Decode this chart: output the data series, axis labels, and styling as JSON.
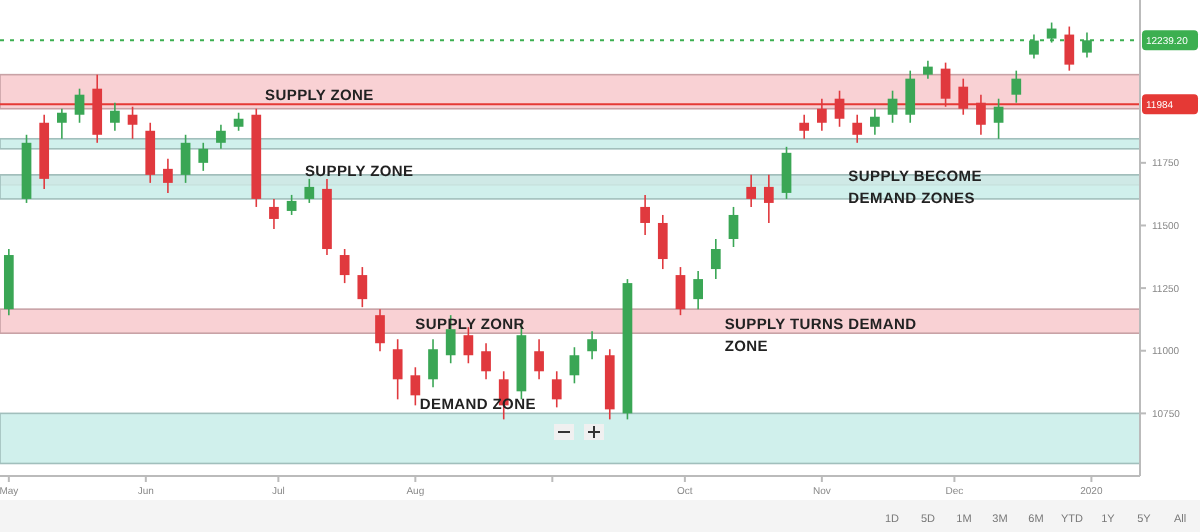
{
  "chart_data": {
    "type": "candlestick",
    "x": [
      "2019-05-01",
      "2019-05-05",
      "2019-05-09",
      "2019-05-13",
      "2019-05-17",
      "2019-05-21",
      "2019-05-25",
      "2019-05-29",
      "2019-06-02",
      "2019-06-06",
      "2019-06-10",
      "2019-06-14",
      "2019-06-18",
      "2019-06-22",
      "2019-06-26",
      "2019-06-30",
      "2019-07-04",
      "2019-07-08",
      "2019-07-12",
      "2019-07-16",
      "2019-07-20",
      "2019-07-24",
      "2019-07-28",
      "2019-08-01",
      "2019-08-05",
      "2019-08-09",
      "2019-08-13",
      "2019-08-17",
      "2019-08-21",
      "2019-08-25",
      "2019-08-29",
      "2019-09-02",
      "2019-09-06",
      "2019-09-10",
      "2019-09-14",
      "2019-09-18",
      "2019-09-22",
      "2019-09-26",
      "2019-09-30",
      "2019-10-04",
      "2019-10-08",
      "2019-10-12",
      "2019-10-16",
      "2019-10-20",
      "2019-10-24",
      "2019-10-28",
      "2019-11-01",
      "2019-11-05",
      "2019-11-09",
      "2019-11-13",
      "2019-11-17",
      "2019-11-21",
      "2019-11-25",
      "2019-11-29",
      "2019-12-03",
      "2019-12-07",
      "2019-12-11",
      "2019-12-15",
      "2019-12-19",
      "2019-12-23",
      "2019-12-27",
      "2019-12-31"
    ],
    "ohlc": [
      [
        11166,
        11406,
        11142,
        11382
      ],
      [
        11606,
        11862,
        11590,
        11830
      ],
      [
        11910,
        11942,
        11646,
        11686
      ],
      [
        11910,
        11966,
        11846,
        11950
      ],
      [
        11942,
        12046,
        11910,
        12022
      ],
      [
        12046,
        12102,
        11830,
        11862
      ],
      [
        11910,
        11990,
        11878,
        11958
      ],
      [
        11942,
        11974,
        11846,
        11902
      ],
      [
        11878,
        11910,
        11670,
        11702
      ],
      [
        11726,
        11766,
        11630,
        11670
      ],
      [
        11702,
        11862,
        11670,
        11830
      ],
      [
        11750,
        11830,
        11718,
        11806
      ],
      [
        11830,
        11902,
        11806,
        11878
      ],
      [
        11894,
        11950,
        11878,
        11926
      ],
      [
        11942,
        11966,
        11574,
        11606
      ],
      [
        11574,
        11606,
        11486,
        11526
      ],
      [
        11558,
        11622,
        11542,
        11598
      ],
      [
        11606,
        11686,
        11590,
        11654
      ],
      [
        11646,
        11686,
        11382,
        11406
      ],
      [
        11382,
        11406,
        11270,
        11302
      ],
      [
        11302,
        11334,
        11174,
        11206
      ],
      [
        11142,
        11166,
        10998,
        11030
      ],
      [
        11006,
        11046,
        10806,
        10886
      ],
      [
        10902,
        10934,
        10782,
        10822
      ],
      [
        10886,
        11046,
        10854,
        11006
      ],
      [
        10982,
        11142,
        10950,
        11086
      ],
      [
        11062,
        11094,
        10950,
        10982
      ],
      [
        10998,
        11030,
        10886,
        10918
      ],
      [
        10886,
        10918,
        10726,
        10782
      ],
      [
        10838,
        11110,
        10806,
        11062
      ],
      [
        10998,
        11046,
        10886,
        10918
      ],
      [
        10886,
        10918,
        10774,
        10806
      ],
      [
        10902,
        11014,
        10870,
        10982
      ],
      [
        10998,
        11078,
        10966,
        11046
      ],
      [
        10982,
        11006,
        10726,
        10766
      ],
      [
        10750,
        11286,
        10726,
        11270
      ],
      [
        11574,
        11622,
        11462,
        11510
      ],
      [
        11510,
        11542,
        11326,
        11366
      ],
      [
        11302,
        11334,
        11142,
        11166
      ],
      [
        11206,
        11318,
        11166,
        11286
      ],
      [
        11326,
        11446,
        11286,
        11406
      ],
      [
        11446,
        11574,
        11414,
        11542
      ],
      [
        11654,
        11702,
        11574,
        11606
      ],
      [
        11654,
        11702,
        11510,
        11590
      ],
      [
        11630,
        11814,
        11606,
        11790
      ],
      [
        11910,
        11942,
        11846,
        11878
      ],
      [
        11966,
        12006,
        11878,
        11910
      ],
      [
        12006,
        12038,
        11894,
        11926
      ],
      [
        11910,
        11942,
        11830,
        11862
      ],
      [
        11894,
        11966,
        11862,
        11934
      ],
      [
        11942,
        12038,
        11910,
        12006
      ],
      [
        11942,
        12118,
        11910,
        12086
      ],
      [
        12102,
        12158,
        12086,
        12134
      ],
      [
        12126,
        12150,
        11974,
        12006
      ],
      [
        12054,
        12086,
        11942,
        11966
      ],
      [
        11990,
        12022,
        11862,
        11902
      ],
      [
        11910,
        12006,
        11846,
        11974
      ],
      [
        12022,
        12118,
        11990,
        12086
      ],
      [
        12182,
        12262,
        12166,
        12238
      ],
      [
        12246,
        12310,
        12230,
        12286
      ],
      [
        12262,
        12294,
        12118,
        12142
      ],
      [
        12190,
        12270,
        12170,
        12239.2
      ]
    ],
    "xlim": [
      "2019-04-29",
      "2020-01-12"
    ],
    "xticks": [
      {
        "value": "2019-05-01",
        "label": "May"
      },
      {
        "value": "2019-06-01",
        "label": "Jun"
      },
      {
        "value": "2019-07-01",
        "label": "Jul"
      },
      {
        "value": "2019-08-01",
        "label": "Aug"
      },
      {
        "value": "2019-09-01",
        "label": null
      },
      {
        "value": "2019-10-01",
        "label": "Oct"
      },
      {
        "value": "2019-11-01",
        "label": "Nov"
      },
      {
        "value": "2019-12-01",
        "label": "Dec"
      },
      {
        "value": "2020-01-01",
        "label": "2020"
      }
    ],
    "ylim": [
      10500,
      12400
    ],
    "yticks": [
      10750,
      11000,
      11250,
      11500,
      11750
    ],
    "grid": false,
    "ref_lines": [
      {
        "axis": "y",
        "value": 12239.2,
        "label": "12239.20",
        "color": "#3caf50",
        "line_style": "dotted"
      },
      {
        "axis": "y",
        "value": 11984,
        "label": "11984",
        "color": "#e53935",
        "line_style": "solid"
      }
    ],
    "bands": [
      {
        "axis": "y",
        "from": 11966,
        "to": 12102,
        "color": "#f8c9cd"
      },
      {
        "axis": "y",
        "from": 11662,
        "to": 11702,
        "color": "#f8c9cd"
      },
      {
        "axis": "y",
        "from": 11806,
        "to": 11846,
        "color": "#c8ede9"
      },
      {
        "axis": "y",
        "from": 11606,
        "to": 11702,
        "color": "#c8ede9"
      },
      {
        "axis": "y",
        "from": 11070,
        "to": 11166,
        "color": "#f8c9cd"
      },
      {
        "axis": "y",
        "from": 10550,
        "to": 10750,
        "color": "#c8ede9"
      }
    ],
    "annotations": [
      {
        "text": "SUPPLY ZONE",
        "x": "2019-06-28",
        "y": 11984
      },
      {
        "text": "SUPPLY ZONE",
        "x": "2019-07-07",
        "y": 11680
      },
      {
        "text": "SUPPLY BECOME\nDEMAND ZONES",
        "x": "2019-11-07",
        "y": 11660
      },
      {
        "text": "SUPPLY ZONR",
        "x": "2019-08-01",
        "y": 11070
      },
      {
        "text": "SUPPLY TURNS DEMAND\nZONE",
        "x": "2019-10-10",
        "y": 11070
      },
      {
        "text": "DEMAND ZONE",
        "x": "2019-08-02",
        "y": 10750
      },
      "1D",
      "5D",
      "1M",
      "3M",
      "6M",
      "YTD",
      "1Y",
      "5Y",
      "All"
    ]
  }
}
